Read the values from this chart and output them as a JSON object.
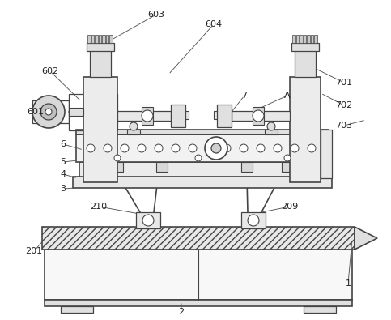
{
  "bg_color": "#ffffff",
  "lc": "#444444",
  "figsize": [
    4.83,
    3.95
  ],
  "dpi": 100,
  "label_fs": 8.0
}
